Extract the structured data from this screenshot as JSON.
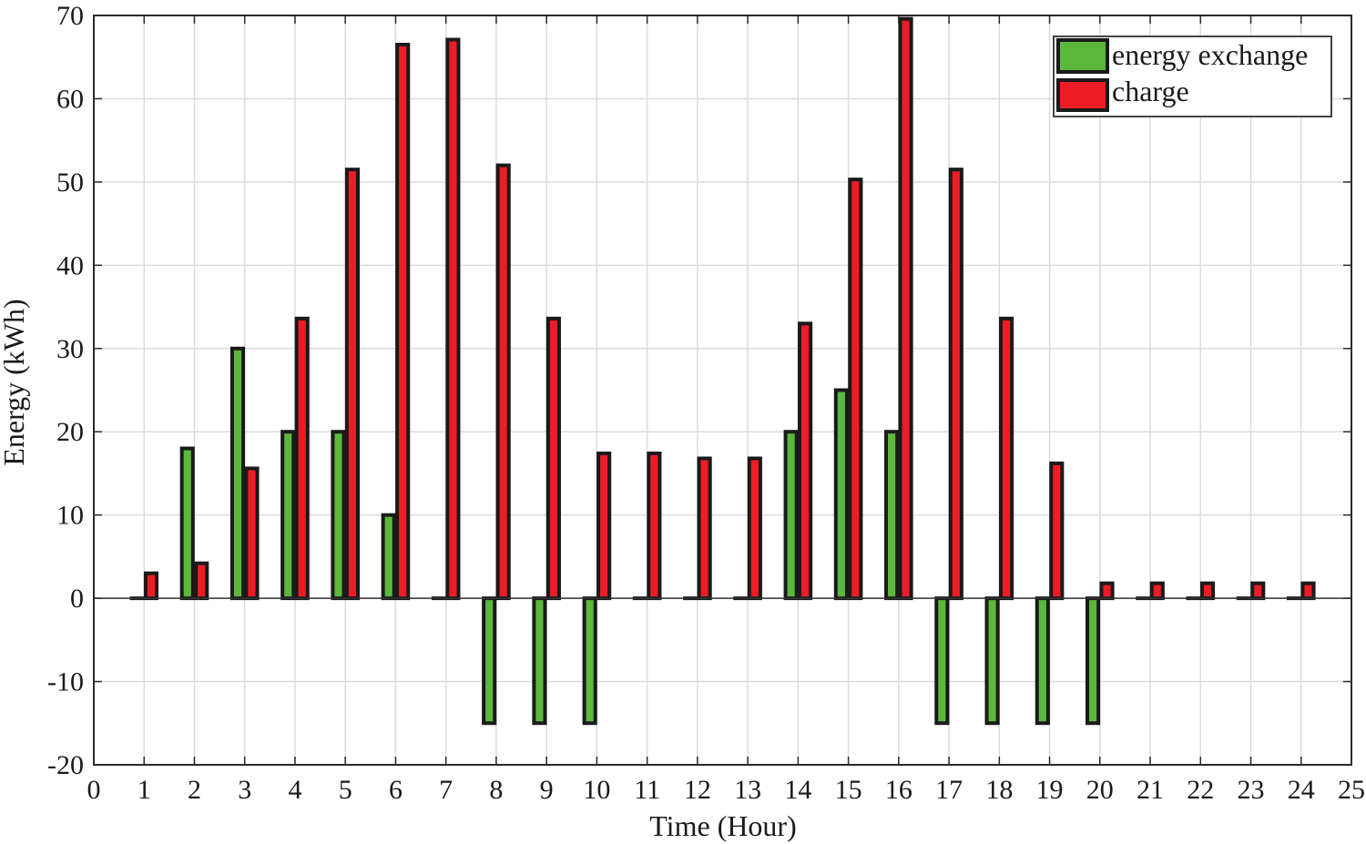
{
  "chart_data": {
    "type": "bar",
    "xlabel": "Time (Hour)",
    "ylabel": "Energy  (kWh)",
    "xlim": [
      0,
      25
    ],
    "ylim": [
      -20,
      70
    ],
    "x_ticks": [
      0,
      1,
      2,
      3,
      4,
      5,
      6,
      7,
      8,
      9,
      10,
      11,
      12,
      13,
      14,
      15,
      16,
      17,
      18,
      19,
      20,
      21,
      22,
      23,
      24,
      25
    ],
    "y_ticks": [
      -20,
      -10,
      0,
      10,
      20,
      30,
      40,
      50,
      60,
      70
    ],
    "grid": true,
    "legend_position": "top-right",
    "categories": [
      1,
      2,
      3,
      4,
      5,
      6,
      7,
      8,
      9,
      10,
      11,
      12,
      13,
      14,
      15,
      16,
      17,
      18,
      19,
      20,
      21,
      22,
      23,
      24
    ],
    "series": [
      {
        "name": "energy exchange",
        "color": "#5cb83c",
        "values": [
          0,
          18,
          30,
          20,
          20,
          10,
          0,
          -15,
          -15,
          -15,
          0,
          0,
          0,
          20,
          25,
          20,
          -15,
          -15,
          -15,
          -15,
          0,
          0,
          0,
          0
        ]
      },
      {
        "name": "charge",
        "color": "#ee1c25",
        "values": [
          3,
          4.2,
          15.6,
          33.6,
          51.5,
          66.5,
          67.1,
          52,
          33.6,
          17.4,
          17.4,
          16.8,
          16.8,
          33,
          50.3,
          69.6,
          51.5,
          33.6,
          16.2,
          1.8,
          1.8,
          1.8,
          1.8,
          1.8
        ]
      }
    ]
  }
}
